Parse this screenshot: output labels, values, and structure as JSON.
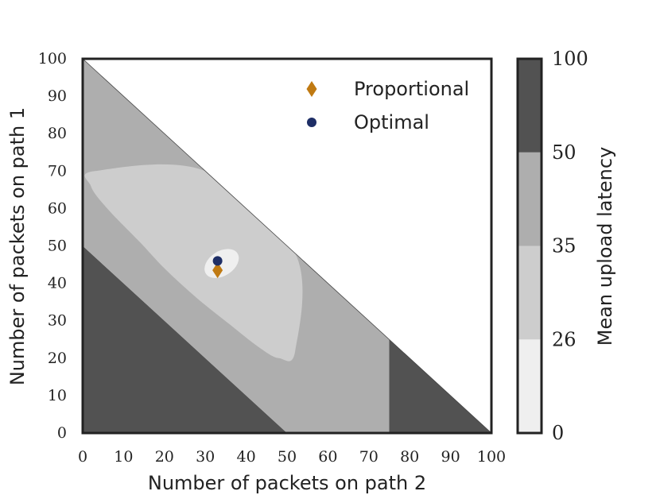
{
  "chart_data": {
    "type": "heatmap",
    "xlabel": "Number of packets on path 2",
    "ylabel": "Number of packets on path 1",
    "xlim": [
      0,
      100
    ],
    "ylim": [
      0,
      100
    ],
    "x_ticks": [
      "0",
      "10",
      "20",
      "30",
      "40",
      "50",
      "60",
      "70",
      "80",
      "90",
      "100"
    ],
    "y_ticks": [
      "0",
      "10",
      "20",
      "30",
      "40",
      "50",
      "60",
      "70",
      "80",
      "90",
      "100"
    ],
    "feasible_region": "x + y <= 100",
    "colorbar": {
      "label": "Mean upload latency",
      "levels": [
        {
          "from": "0",
          "to": "26",
          "color": "#efefef"
        },
        {
          "from": "26",
          "to": "35",
          "color": "#cdcdcd"
        },
        {
          "from": "35",
          "to": "50",
          "color": "#aeaeae"
        },
        {
          "from": "50",
          "to": "100",
          "color": "#525252"
        }
      ],
      "tick_labels": [
        "0",
        "26",
        "35",
        "50",
        "100"
      ]
    },
    "regions": [
      {
        "level": "50-100",
        "polygon": [
          [
            0,
            0
          ],
          [
            0,
            50
          ],
          [
            50,
            0
          ]
        ]
      },
      {
        "level": "50-100",
        "polygon": [
          [
            75,
            0
          ],
          [
            100,
            0
          ],
          [
            75,
            25
          ]
        ]
      },
      {
        "level": "35-50",
        "polygon": [
          [
            0,
            50
          ],
          [
            0,
            100
          ],
          [
            75,
            25
          ],
          [
            75,
            0
          ],
          [
            50,
            0
          ]
        ]
      },
      {
        "level": "26-35",
        "polygon": [
          [
            30,
            70
          ],
          [
            3,
            70
          ],
          [
            2,
            66
          ],
          [
            6,
            60
          ],
          [
            14,
            51
          ],
          [
            20,
            44
          ],
          [
            28,
            36
          ],
          [
            36,
            29
          ],
          [
            43,
            23
          ],
          [
            48,
            20
          ],
          [
            52,
            22
          ],
          [
            52,
            48
          ]
        ]
      },
      {
        "level": "0-26",
        "ellipse": {
          "center": [
            34,
            45.3
          ],
          "rx": 4.6,
          "ry": 3.3,
          "angle_deg": -33
        }
      }
    ],
    "series": [
      {
        "name": "Proportional",
        "marker": "diamond",
        "color": "#c07a12",
        "points": [
          [
            33,
            43.5
          ]
        ]
      },
      {
        "name": "Optimal",
        "marker": "circle",
        "color": "#1e2e66",
        "points": [
          [
            33,
            46
          ]
        ]
      }
    ],
    "legend": "top-right",
    "grid": false
  }
}
